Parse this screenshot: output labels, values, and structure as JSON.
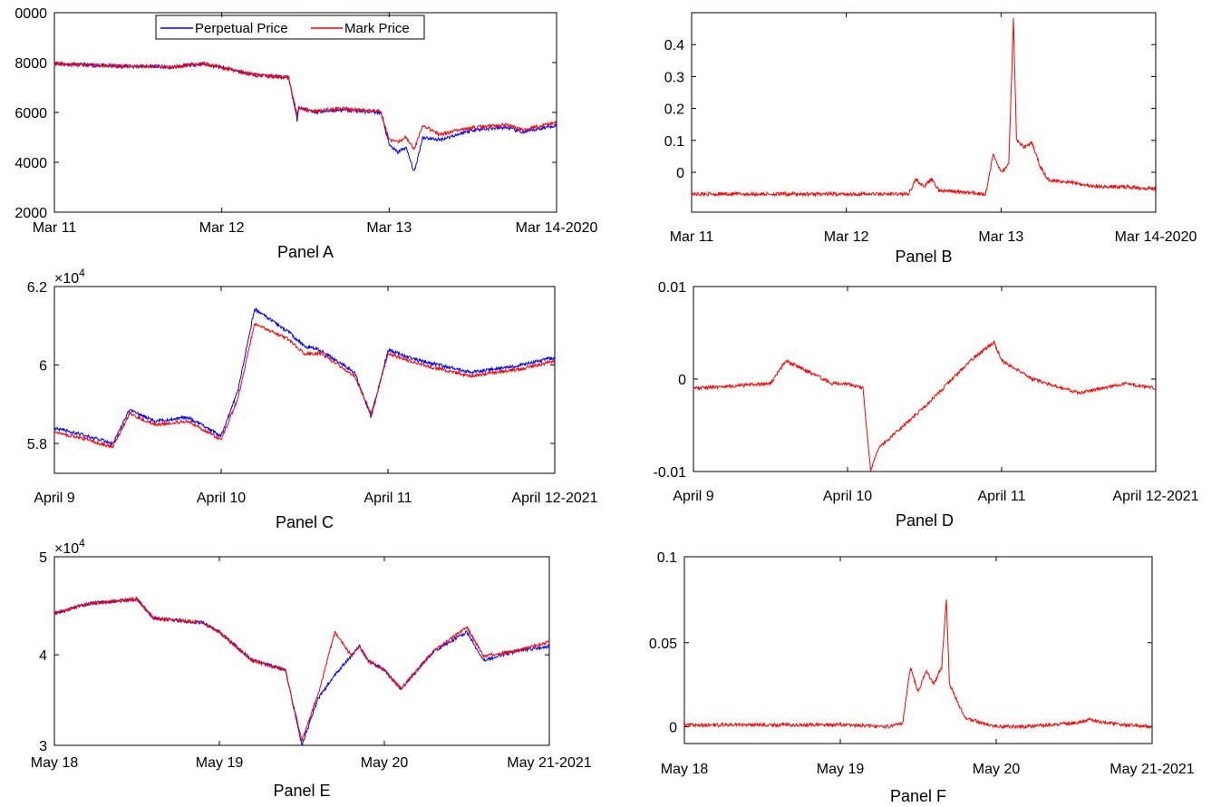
{
  "colors": {
    "perpetual": "#0000ff",
    "mark": "#ff0000"
  },
  "legend": {
    "items": [
      "Perpetual Price",
      "Mark Price"
    ]
  },
  "chart_data": [
    {
      "panel": "Panel A",
      "type": "line",
      "x_ticks": [
        "Mar 11",
        "Mar 12",
        "Mar 13",
        "Mar 14-2020"
      ],
      "y_ticks": [
        "0000",
        "8000",
        "6000",
        "4000",
        "2000"
      ],
      "ylim": [
        2000,
        10000
      ],
      "exponent": "",
      "series": [
        {
          "name": "Perpetual Price",
          "color": "#0000ff",
          "x": [
            0,
            0.2,
            0.4,
            0.6,
            0.7,
            0.8,
            0.9,
            1.0,
            1.2,
            1.4,
            1.45,
            1.46,
            1.55,
            1.7,
            1.95,
            2.0,
            2.05,
            2.1,
            2.15,
            2.2,
            2.3,
            2.5,
            2.7,
            2.8,
            3.0
          ],
          "y": [
            7950,
            7900,
            7850,
            7850,
            7800,
            7900,
            7950,
            7800,
            7500,
            7400,
            5700,
            6200,
            6000,
            6100,
            6000,
            4700,
            4400,
            4600,
            3600,
            5000,
            4900,
            5300,
            5400,
            5200,
            5500
          ]
        },
        {
          "name": "Mark Price",
          "color": "#ff0000",
          "x": [
            0,
            0.2,
            0.4,
            0.6,
            0.7,
            0.8,
            0.9,
            1.0,
            1.2,
            1.4,
            1.45,
            1.46,
            1.55,
            1.7,
            1.95,
            2.0,
            2.05,
            2.1,
            2.15,
            2.2,
            2.3,
            2.5,
            2.7,
            2.8,
            3.0
          ],
          "y": [
            7950,
            7900,
            7850,
            7850,
            7800,
            7900,
            7950,
            7800,
            7500,
            7400,
            5900,
            6200,
            6050,
            6150,
            6050,
            4900,
            4800,
            5000,
            4500,
            5500,
            5100,
            5400,
            5500,
            5300,
            5600
          ]
        }
      ]
    },
    {
      "panel": "Panel B",
      "type": "line",
      "x_ticks": [
        "Mar 11",
        "Mar 12",
        "Mar 13",
        "Mar 14-2020"
      ],
      "y_ticks": [
        "0.4",
        "0.3",
        "0.2",
        "0.1",
        "0"
      ],
      "ylim": [
        -0.05,
        0.5
      ],
      "exponent": "",
      "series": [
        {
          "name": "",
          "color": "#ff0000",
          "x": [
            0,
            1.0,
            1.4,
            1.45,
            1.5,
            1.55,
            1.6,
            1.9,
            1.95,
            2.0,
            2.05,
            2.08,
            2.1,
            2.12,
            2.15,
            2.2,
            2.25,
            2.3,
            2.5,
            2.6,
            2.8,
            3.0
          ],
          "y": [
            0,
            0,
            0,
            0.04,
            0.02,
            0.04,
            0.01,
            0,
            0.11,
            0.06,
            0.08,
            0.48,
            0.15,
            0.14,
            0.13,
            0.14,
            0.08,
            0.04,
            0.03,
            0.02,
            0.02,
            0.015
          ]
        }
      ]
    },
    {
      "panel": "Panel C",
      "type": "line",
      "x_ticks": [
        "April 9",
        "April 10",
        "April 11",
        "April 12-2021"
      ],
      "y_ticks": [
        "6.2",
        "6",
        "5.8"
      ],
      "ylim": [
        5.7,
        6.2
      ],
      "exponent": "4",
      "series": [
        {
          "name": "Perpetual Price",
          "color": "#0000ff",
          "x": [
            0,
            0.2,
            0.35,
            0.45,
            0.6,
            0.8,
            1.0,
            1.1,
            1.2,
            1.4,
            1.5,
            1.6,
            1.8,
            1.9,
            2.0,
            2.2,
            2.5,
            2.8,
            3.0
          ],
          "y": [
            5.82,
            5.8,
            5.78,
            5.87,
            5.84,
            5.85,
            5.8,
            5.92,
            6.14,
            6.08,
            6.04,
            6.03,
            5.97,
            5.85,
            6.03,
            6.0,
            5.97,
            5.99,
            6.01
          ]
        },
        {
          "name": "Mark Price",
          "color": "#ff0000",
          "x": [
            0,
            0.2,
            0.35,
            0.45,
            0.6,
            0.8,
            1.0,
            1.1,
            1.2,
            1.4,
            1.5,
            1.6,
            1.8,
            1.9,
            2.0,
            2.2,
            2.5,
            2.8,
            3.0
          ],
          "y": [
            5.81,
            5.79,
            5.77,
            5.86,
            5.83,
            5.84,
            5.79,
            5.9,
            6.1,
            6.06,
            6.02,
            6.02,
            5.96,
            5.86,
            6.02,
            5.99,
            5.96,
            5.98,
            6.0
          ]
        }
      ]
    },
    {
      "panel": "Panel D",
      "type": "line",
      "x_ticks": [
        "April 9",
        "April 10",
        "April 11",
        "April 12-2021"
      ],
      "y_ticks": [
        "0.01",
        "0",
        "-0.01"
      ],
      "ylim": [
        -0.01,
        0.01
      ],
      "exponent": "",
      "series": [
        {
          "name": "",
          "color": "#ff0000",
          "x": [
            0,
            0.5,
            0.6,
            0.9,
            1.0,
            1.1,
            1.15,
            1.2,
            1.5,
            1.8,
            1.95,
            2.0,
            2.2,
            2.5,
            2.8,
            3.0
          ],
          "y": [
            -0.001,
            -0.0005,
            0.002,
            -0.0005,
            -0.0005,
            -0.001,
            -0.01,
            -0.0075,
            -0.003,
            0.002,
            0.004,
            0.002,
            0.0,
            -0.0015,
            -0.0005,
            -0.001
          ]
        }
      ]
    },
    {
      "panel": "Panel E",
      "type": "line",
      "x_ticks": [
        "May 18",
        "May 19",
        "May 20",
        "May 21-2021"
      ],
      "y_ticks": [
        "5",
        "4",
        "3"
      ],
      "ylim": [
        3,
        5
      ],
      "exponent": "4",
      "series": [
        {
          "name": "Perpetual Price",
          "color": "#0000ff",
          "x": [
            0,
            0.2,
            0.5,
            0.6,
            0.9,
            1.0,
            1.2,
            1.4,
            1.5,
            1.6,
            1.7,
            1.8,
            1.85,
            1.9,
            2.0,
            2.1,
            2.3,
            2.5,
            2.6,
            2.8,
            3.0
          ],
          "y": [
            4.4,
            4.5,
            4.55,
            4.35,
            4.3,
            4.2,
            3.9,
            3.8,
            3.0,
            3.5,
            3.75,
            3.95,
            4.05,
            3.9,
            3.8,
            3.6,
            4.0,
            4.2,
            3.9,
            4.0,
            4.05
          ]
        },
        {
          "name": "Mark Price",
          "color": "#ff0000",
          "x": [
            0,
            0.2,
            0.5,
            0.6,
            0.9,
            1.0,
            1.2,
            1.4,
            1.5,
            1.6,
            1.7,
            1.8,
            1.85,
            1.9,
            2.0,
            2.1,
            2.3,
            2.5,
            2.6,
            2.8,
            3.0
          ],
          "y": [
            4.4,
            4.5,
            4.55,
            4.35,
            4.3,
            4.2,
            3.9,
            3.8,
            3.05,
            3.55,
            4.2,
            3.95,
            4.05,
            3.9,
            3.8,
            3.6,
            4.0,
            4.25,
            3.95,
            4.0,
            4.1
          ]
        }
      ]
    },
    {
      "panel": "Panel F",
      "type": "line",
      "x_ticks": [
        "May 18",
        "May 19",
        "May 20",
        "May 21-2021"
      ],
      "y_ticks": [
        "0.1",
        "0.05",
        "0"
      ],
      "ylim": [
        -0.01,
        0.1
      ],
      "exponent": "",
      "series": [
        {
          "name": "",
          "color": "#ff0000",
          "x": [
            0,
            0.5,
            1.0,
            1.3,
            1.4,
            1.45,
            1.5,
            1.55,
            1.6,
            1.65,
            1.68,
            1.7,
            1.75,
            1.8,
            2.0,
            2.2,
            2.5,
            2.6,
            2.8,
            3.0
          ],
          "y": [
            0.001,
            0.001,
            0.001,
            0.0,
            0.002,
            0.035,
            0.02,
            0.033,
            0.025,
            0.035,
            0.075,
            0.025,
            0.015,
            0.005,
            0.0,
            0.0,
            0.002,
            0.004,
            0.001,
            0.0
          ]
        }
      ]
    }
  ],
  "panels": [
    {
      "title": "Panel A"
    },
    {
      "title": "Panel B"
    },
    {
      "title": "Panel C"
    },
    {
      "title": "Panel D"
    },
    {
      "title": "Panel E"
    },
    {
      "title": "Panel F"
    }
  ]
}
